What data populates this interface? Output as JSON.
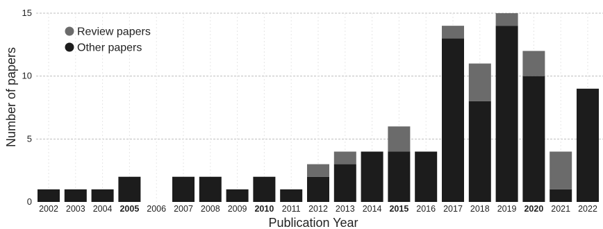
{
  "chart_data": {
    "type": "bar",
    "stacked": true,
    "xlabel": "Publication Year",
    "ylabel": "Number of papers",
    "ylim": [
      0,
      15
    ],
    "yticks": [
      0,
      5,
      10,
      15
    ],
    "grid": true,
    "legend_position": "top-left",
    "categories": [
      "2002",
      "2003",
      "2004",
      "2005",
      "2006",
      "2007",
      "2008",
      "2009",
      "2010",
      "2011",
      "2012",
      "2013",
      "2014",
      "2015",
      "2016",
      "2017",
      "2018",
      "2019",
      "2020",
      "2021",
      "2022"
    ],
    "bold_categories": [
      "2005",
      "2010",
      "2015",
      "2020"
    ],
    "series": [
      {
        "name": "Other papers",
        "color": "#1c1c1c",
        "values": [
          1,
          1,
          1,
          2,
          0,
          2,
          2,
          1,
          2,
          1,
          2,
          3,
          4,
          4,
          4,
          13,
          8,
          14,
          10,
          1,
          9
        ]
      },
      {
        "name": "Review papers",
        "color": "#6b6b6b",
        "values": [
          0,
          0,
          0,
          0,
          0,
          0,
          0,
          0,
          0,
          0,
          1,
          1,
          0,
          2,
          0,
          1,
          3,
          1,
          2,
          3,
          0
        ]
      }
    ],
    "legend": [
      {
        "label": "Review papers",
        "color": "#6b6b6b"
      },
      {
        "label": "Other papers",
        "color": "#1c1c1c"
      }
    ]
  }
}
